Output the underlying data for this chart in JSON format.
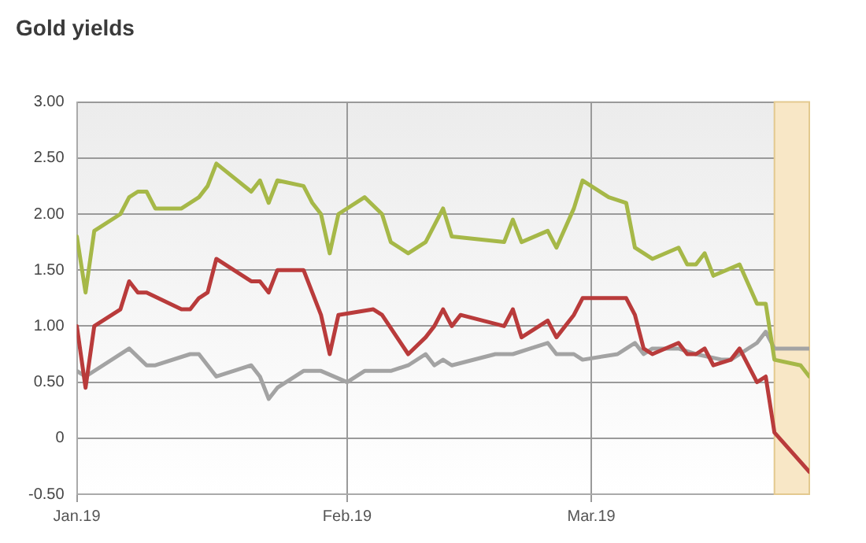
{
  "chart_data": {
    "type": "line",
    "title": "Gold yields",
    "xlim": [
      "2019-01-01",
      "2019-03-26"
    ],
    "xticks": [
      {
        "value": "2019-01-01",
        "label": "Jan.19"
      },
      {
        "value": "2019-02-01",
        "label": "Feb.19"
      },
      {
        "value": "2019-03-01",
        "label": "Mar.19"
      }
    ],
    "ylim": [
      -0.5,
      3
    ],
    "yticks": [
      {
        "value": -0.5,
        "label": "-0.50"
      },
      0,
      {
        "value": 0.5,
        "label": "0.50"
      },
      {
        "value": 1,
        "label": "1.00"
      },
      {
        "value": 1.5,
        "label": "1.50"
      },
      {
        "value": 2,
        "label": "2.00"
      },
      {
        "value": 2.5,
        "label": "2.50"
      },
      {
        "value": 3,
        "label": "3.00"
      }
    ],
    "grid": true,
    "legend": false,
    "marker": "none",
    "line_style": "solid",
    "bands": [
      {
        "axis": "x",
        "from": "2019-03-22",
        "to": "2019-03-26",
        "color": "#f8e7c6"
      }
    ],
    "series": [
      {
        "color": "#a6b848",
        "x": [
          "2019-01-01",
          "2019-01-02",
          "2019-01-03",
          "2019-01-06",
          "2019-01-07",
          "2019-01-08",
          "2019-01-09",
          "2019-01-10",
          "2019-01-13",
          "2019-01-15",
          "2019-01-16",
          "2019-01-17",
          "2019-01-21",
          "2019-01-22",
          "2019-01-23",
          "2019-01-24",
          "2019-01-27",
          "2019-01-28",
          "2019-01-29",
          "2019-01-30",
          "2019-01-31",
          "2019-02-03",
          "2019-02-05",
          "2019-02-06",
          "2019-02-08",
          "2019-02-10",
          "2019-02-12",
          "2019-02-13",
          "2019-02-19",
          "2019-02-20",
          "2019-02-21",
          "2019-02-24",
          "2019-02-25",
          "2019-02-27",
          "2019-02-28",
          "2019-03-03",
          "2019-03-05",
          "2019-03-06",
          "2019-03-08",
          "2019-03-11",
          "2019-03-12",
          "2019-03-13",
          "2019-03-14",
          "2019-03-15",
          "2019-03-18",
          "2019-03-20",
          "2019-03-21",
          "2019-03-22",
          "2019-03-25",
          "2019-03-26"
        ],
        "values": [
          1.8,
          1.3,
          1.85,
          2.0,
          2.15,
          2.2,
          2.2,
          2.05,
          2.05,
          2.15,
          2.25,
          2.45,
          2.2,
          2.3,
          2.1,
          2.3,
          2.25,
          2.1,
          2.0,
          1.65,
          2.0,
          2.15,
          2.0,
          1.75,
          1.65,
          1.75,
          2.05,
          1.8,
          1.75,
          1.95,
          1.75,
          1.85,
          1.7,
          2.05,
          2.3,
          2.15,
          2.1,
          1.7,
          1.6,
          1.7,
          1.55,
          1.55,
          1.65,
          1.45,
          1.55,
          1.2,
          1.2,
          0.7,
          0.65,
          0.55
        ]
      },
      {
        "color": "#b93b3b",
        "x": [
          "2019-01-01",
          "2019-01-02",
          "2019-01-03",
          "2019-01-06",
          "2019-01-07",
          "2019-01-08",
          "2019-01-09",
          "2019-01-13",
          "2019-01-14",
          "2019-01-15",
          "2019-01-16",
          "2019-01-17",
          "2019-01-21",
          "2019-01-22",
          "2019-01-23",
          "2019-01-24",
          "2019-01-27",
          "2019-01-29",
          "2019-01-30",
          "2019-01-31",
          "2019-02-04",
          "2019-02-05",
          "2019-02-08",
          "2019-02-10",
          "2019-02-11",
          "2019-02-12",
          "2019-02-13",
          "2019-02-14",
          "2019-02-19",
          "2019-02-20",
          "2019-02-21",
          "2019-02-24",
          "2019-02-25",
          "2019-02-27",
          "2019-02-28",
          "2019-03-01",
          "2019-03-05",
          "2019-03-06",
          "2019-03-07",
          "2019-03-08",
          "2019-03-11",
          "2019-03-12",
          "2019-03-13",
          "2019-03-14",
          "2019-03-15",
          "2019-03-17",
          "2019-03-18",
          "2019-03-20",
          "2019-03-21",
          "2019-03-22",
          "2019-03-26"
        ],
        "values": [
          1.0,
          0.45,
          1.0,
          1.15,
          1.4,
          1.3,
          1.3,
          1.15,
          1.15,
          1.25,
          1.3,
          1.6,
          1.4,
          1.4,
          1.3,
          1.5,
          1.5,
          1.1,
          0.75,
          1.1,
          1.15,
          1.1,
          0.75,
          0.9,
          1.0,
          1.15,
          1.0,
          1.1,
          1.0,
          1.15,
          0.9,
          1.05,
          0.9,
          1.1,
          1.25,
          1.25,
          1.25,
          1.1,
          0.8,
          0.75,
          0.85,
          0.75,
          0.75,
          0.8,
          0.65,
          0.7,
          0.8,
          0.5,
          0.55,
          0.05,
          -0.3
        ]
      },
      {
        "color": "#a3a3a3",
        "x": [
          "2019-01-01",
          "2019-01-02",
          "2019-01-07",
          "2019-01-09",
          "2019-01-10",
          "2019-01-14",
          "2019-01-15",
          "2019-01-16",
          "2019-01-17",
          "2019-01-21",
          "2019-01-22",
          "2019-01-23",
          "2019-01-24",
          "2019-01-27",
          "2019-01-29",
          "2019-02-01",
          "2019-02-03",
          "2019-02-06",
          "2019-02-08",
          "2019-02-10",
          "2019-02-11",
          "2019-02-12",
          "2019-02-13",
          "2019-02-18",
          "2019-02-20",
          "2019-02-22",
          "2019-02-24",
          "2019-02-25",
          "2019-02-27",
          "2019-02-28",
          "2019-03-04",
          "2019-03-05",
          "2019-03-06",
          "2019-03-07",
          "2019-03-08",
          "2019-03-11",
          "2019-03-13",
          "2019-03-16",
          "2019-03-17",
          "2019-03-20",
          "2019-03-21",
          "2019-03-22",
          "2019-03-26"
        ],
        "values": [
          0.6,
          0.55,
          0.8,
          0.65,
          0.65,
          0.75,
          0.75,
          0.65,
          0.55,
          0.65,
          0.55,
          0.35,
          0.45,
          0.6,
          0.6,
          0.5,
          0.6,
          0.6,
          0.65,
          0.75,
          0.65,
          0.7,
          0.65,
          0.75,
          0.75,
          0.8,
          0.85,
          0.75,
          0.75,
          0.7,
          0.75,
          0.8,
          0.85,
          0.75,
          0.8,
          0.8,
          0.75,
          0.7,
          0.7,
          0.85,
          0.95,
          0.8,
          0.8
        ]
      }
    ]
  }
}
